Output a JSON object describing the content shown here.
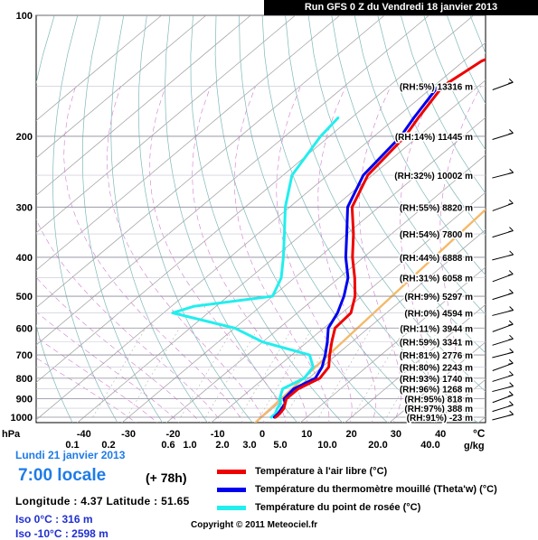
{
  "header": {
    "title": "Run GFS 0 Z du Vendredi 18 janvier 2013"
  },
  "info": {
    "date": "Lundi 21 janvier 2013",
    "local_time": "7:00 locale",
    "lead": "(+ 78h)",
    "lonlat": "Longitude : 4.37  Latitude : 51.65",
    "iso0": "Iso 0°C : 316 m",
    "iso10": "Iso -10°C : 2598 m",
    "copyright": "Copyright © 2011 Meteociel.fr"
  },
  "legend": [
    {
      "label": "Température à l'air libre (°C)",
      "color": "#ee0000"
    },
    {
      "label": "Température du thermomètre mouillé (Theta'w) (°C)",
      "color": "#0000ee"
    },
    {
      "label": "Température du point de rosée (°C)",
      "color": "#22eeee"
    }
  ],
  "chart_data": {
    "type": "line",
    "chart_kind": "skew-T log-P sounding",
    "y_axis": {
      "label": "hPa",
      "scale": "log",
      "range": [
        1000,
        100
      ],
      "ticks": [
        "100",
        "200",
        "300",
        "400",
        "500",
        "600",
        "700",
        "800",
        "900",
        "1000"
      ]
    },
    "x_axis": {
      "label": "°C",
      "range": [
        -40,
        30
      ],
      "ticks": [
        "-40",
        "-30",
        "-20",
        "-10",
        "0",
        "10",
        "20",
        "30",
        "40"
      ]
    },
    "mixing_ratio_axis": {
      "label": "g/kg",
      "ticks": [
        "0.1",
        "0.2",
        "0.6",
        "1.0",
        "2.0",
        "3.0",
        "5.0",
        "10.0",
        "20.0",
        "40.0"
      ]
    },
    "series": [
      {
        "name": "Température à l'air libre (°C)",
        "color": "#ee0000",
        "points": [
          [
            1000,
            3
          ],
          [
            980,
            3
          ],
          [
            950,
            2.5
          ],
          [
            925,
            1.5
          ],
          [
            900,
            0.5
          ],
          [
            850,
            0.5
          ],
          [
            800,
            2.5
          ],
          [
            750,
            1.5
          ],
          [
            700,
            -1.5
          ],
          [
            650,
            -4.5
          ],
          [
            600,
            -7.5
          ],
          [
            550,
            -8
          ],
          [
            500,
            -11.5
          ],
          [
            450,
            -16.5
          ],
          [
            400,
            -22.5
          ],
          [
            350,
            -28.5
          ],
          [
            300,
            -36
          ],
          [
            250,
            -41
          ],
          [
            200,
            -43
          ],
          [
            180,
            -45
          ],
          [
            150,
            -48
          ],
          [
            140,
            -47
          ],
          [
            130,
            -46
          ],
          [
            120,
            -42
          ],
          [
            110,
            -38
          ]
        ]
      },
      {
        "name": "Température du thermomètre mouillé (Theta'w) (°C)",
        "color": "#0000ee",
        "points": [
          [
            1000,
            2.7
          ],
          [
            980,
            2.6
          ],
          [
            950,
            2
          ],
          [
            925,
            1.5
          ],
          [
            900,
            0
          ],
          [
            850,
            -0.5
          ],
          [
            800,
            1.5
          ],
          [
            750,
            0
          ],
          [
            700,
            -2.5
          ],
          [
            650,
            -5.5
          ],
          [
            600,
            -9
          ],
          [
            550,
            -11
          ],
          [
            500,
            -14
          ],
          [
            450,
            -18
          ],
          [
            400,
            -24
          ],
          [
            350,
            -30
          ],
          [
            300,
            -37
          ],
          [
            250,
            -42
          ],
          [
            200,
            -44
          ],
          [
            180,
            -46
          ],
          [
            150,
            -49
          ]
        ]
      },
      {
        "name": "Température du point de rosée (°C)",
        "color": "#22eeee",
        "points": [
          [
            1000,
            2
          ],
          [
            980,
            2
          ],
          [
            950,
            1
          ],
          [
            925,
            0.5
          ],
          [
            900,
            -1
          ],
          [
            850,
            -3
          ],
          [
            800,
            -1
          ],
          [
            750,
            -2
          ],
          [
            700,
            -6
          ],
          [
            650,
            -20
          ],
          [
            600,
            -30
          ],
          [
            550,
            -48
          ],
          [
            530,
            -45
          ],
          [
            500,
            -30
          ],
          [
            450,
            -33
          ],
          [
            400,
            -38
          ],
          [
            350,
            -44
          ],
          [
            300,
            -51
          ],
          [
            250,
            -58
          ],
          [
            200,
            -62
          ],
          [
            180,
            -63
          ]
        ]
      }
    ],
    "levels": [
      {
        "p": 150,
        "text": "(RH:5%) 13316 m"
      },
      {
        "p": 200,
        "text": "(RH:14%) 11445 m"
      },
      {
        "p": 250,
        "text": "(RH:32%) 10002 m"
      },
      {
        "p": 300,
        "text": "(RH:55%) 8820 m"
      },
      {
        "p": 350,
        "text": "(RH:54%) 7800 m"
      },
      {
        "p": 400,
        "text": "(RH:44%) 6888 m"
      },
      {
        "p": 450,
        "text": "(RH:31%) 6058 m"
      },
      {
        "p": 500,
        "text": "(RH:9%) 5297 m"
      },
      {
        "p": 550,
        "text": "(RH:0%) 4594 m"
      },
      {
        "p": 600,
        "text": "(RH:11%) 3944 m"
      },
      {
        "p": 650,
        "text": "(RH:59%) 3341 m"
      },
      {
        "p": 700,
        "text": "(RH:81%) 2776 m"
      },
      {
        "p": 750,
        "text": "(RH:80%) 2243 m"
      },
      {
        "p": 800,
        "text": "(RH:93%) 1740 m"
      },
      {
        "p": 850,
        "text": "(RH:96%) 1268 m"
      },
      {
        "p": 900,
        "text": "(RH:95%) 818 m"
      },
      {
        "p": 950,
        "text": "(RH:97%) 388 m"
      },
      {
        "p": 1000,
        "text": "(RH:91%) -23 m"
      }
    ],
    "wind_barbs_present": true
  }
}
